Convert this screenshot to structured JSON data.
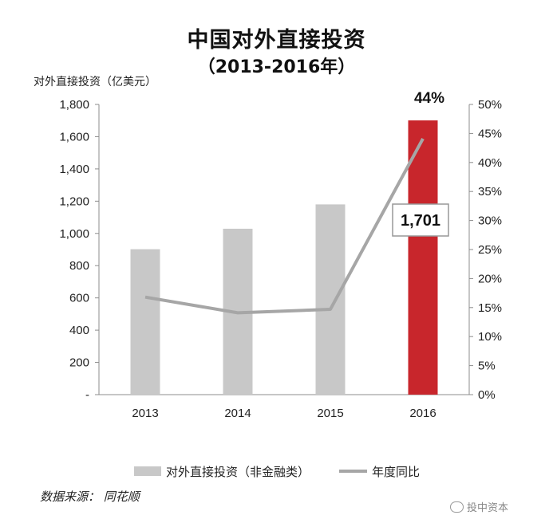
{
  "chart_data": {
    "type": "bar",
    "title": "中国对外直接投资",
    "subtitle": "（2013-2016年）",
    "ylabel": "对外直接投资（亿美元）",
    "categories": [
      "2013",
      "2014",
      "2015",
      "2016"
    ],
    "ylim": [
      0,
      1800
    ],
    "yticks": [
      "-",
      "200",
      "400",
      "600",
      "800",
      "1,000",
      "1,200",
      "1,400",
      "1,600",
      "1,800"
    ],
    "y2lim": [
      0,
      50
    ],
    "y2ticks": [
      "0%",
      "5%",
      "10%",
      "15%",
      "20%",
      "25%",
      "30%",
      "35%",
      "40%",
      "45%",
      "50%"
    ],
    "series": [
      {
        "name": "对外直接投资（非金融类）",
        "kind": "bar",
        "axis": "left",
        "values": [
          902,
          1029,
          1180,
          1701
        ],
        "colors": [
          "#c8c8c8",
          "#c8c8c8",
          "#c8c8c8",
          "#c8262c"
        ]
      },
      {
        "name": "年度同比",
        "kind": "line",
        "axis": "right",
        "values": [
          16.8,
          14.1,
          14.7,
          44.1
        ],
        "color": "#a6a6a6"
      }
    ],
    "annotations": {
      "bar_label": "1,701",
      "pct_label": "44%"
    },
    "legend_position": "bottom"
  },
  "source": "数据来源： 同花顺",
  "watermark": "投中资本"
}
